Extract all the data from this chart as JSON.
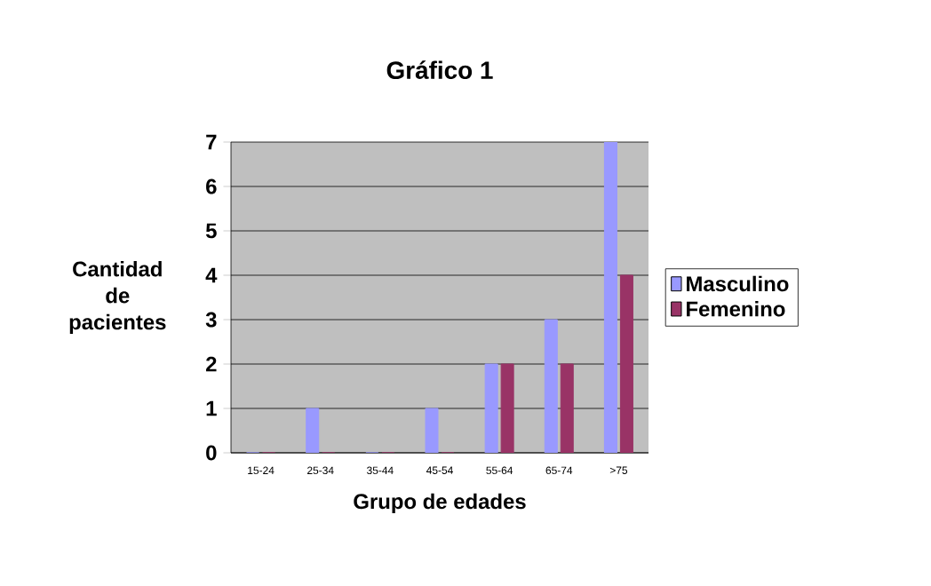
{
  "chart_data": {
    "type": "bar",
    "title": "Gráfico 1",
    "xlabel": "Grupo de edades",
    "ylabel": "Cantidad de pacientes",
    "categories": [
      "15-24",
      "25-34",
      "35-44",
      "45-54",
      "55-64",
      "65-74",
      ">75"
    ],
    "series": [
      {
        "name": "Masculino",
        "color": "#9999ff",
        "values": [
          0,
          1,
          0,
          1,
          2,
          3,
          7
        ]
      },
      {
        "name": "Femenino",
        "color": "#993366",
        "values": [
          0,
          0,
          0,
          0,
          2,
          2,
          4
        ]
      }
    ],
    "ylim": [
      0,
      7
    ],
    "yticks": [
      0,
      1,
      2,
      3,
      4,
      5,
      6,
      7
    ],
    "grid": "y",
    "legend": "right"
  }
}
